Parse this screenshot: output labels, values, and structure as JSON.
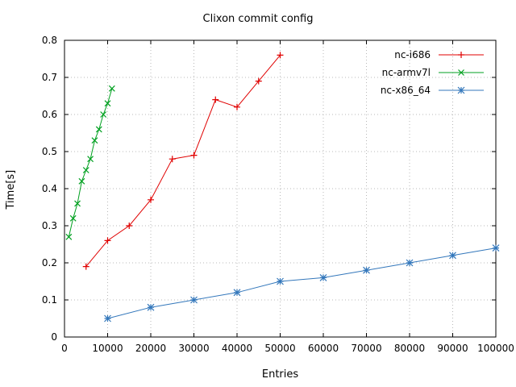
{
  "chart_data": {
    "type": "line",
    "title": "Clixon commit config",
    "xlabel": "Entries",
    "ylabel": "Time[s]",
    "xlim": [
      0,
      100000
    ],
    "ylim": [
      0,
      0.8
    ],
    "xticks": [
      0,
      10000,
      20000,
      30000,
      40000,
      50000,
      60000,
      70000,
      80000,
      90000,
      100000
    ],
    "yticks": [
      0,
      0.1,
      0.2,
      0.3,
      0.4,
      0.5,
      0.6,
      0.7,
      0.8
    ],
    "grid": true,
    "grid_color": "#b8b8b8",
    "axis_color": "#000000",
    "legend_position": "top-right",
    "series": [
      {
        "name": "nc-i686",
        "color": "#e00000",
        "marker": "plus",
        "x": [
          5000,
          10000,
          15000,
          20000,
          25000,
          30000,
          35000,
          40000,
          45000,
          50000
        ],
        "y": [
          0.19,
          0.26,
          0.3,
          0.37,
          0.48,
          0.49,
          0.64,
          0.62,
          0.69,
          0.76
        ]
      },
      {
        "name": "nc-armv7l",
        "color": "#00a020",
        "marker": "cross",
        "x": [
          1000,
          2000,
          3000,
          4000,
          5000,
          6000,
          7000,
          8000,
          9000,
          10000,
          11000
        ],
        "y": [
          0.27,
          0.32,
          0.36,
          0.42,
          0.45,
          0.48,
          0.53,
          0.56,
          0.6,
          0.63,
          0.67
        ]
      },
      {
        "name": "nc-x86_64",
        "color": "#3377bb",
        "marker": "asterisk",
        "x": [
          10000,
          20000,
          30000,
          40000,
          50000,
          60000,
          70000,
          80000,
          90000,
          100000
        ],
        "y": [
          0.05,
          0.08,
          0.1,
          0.12,
          0.15,
          0.16,
          0.18,
          0.2,
          0.22,
          0.24
        ]
      }
    ]
  }
}
